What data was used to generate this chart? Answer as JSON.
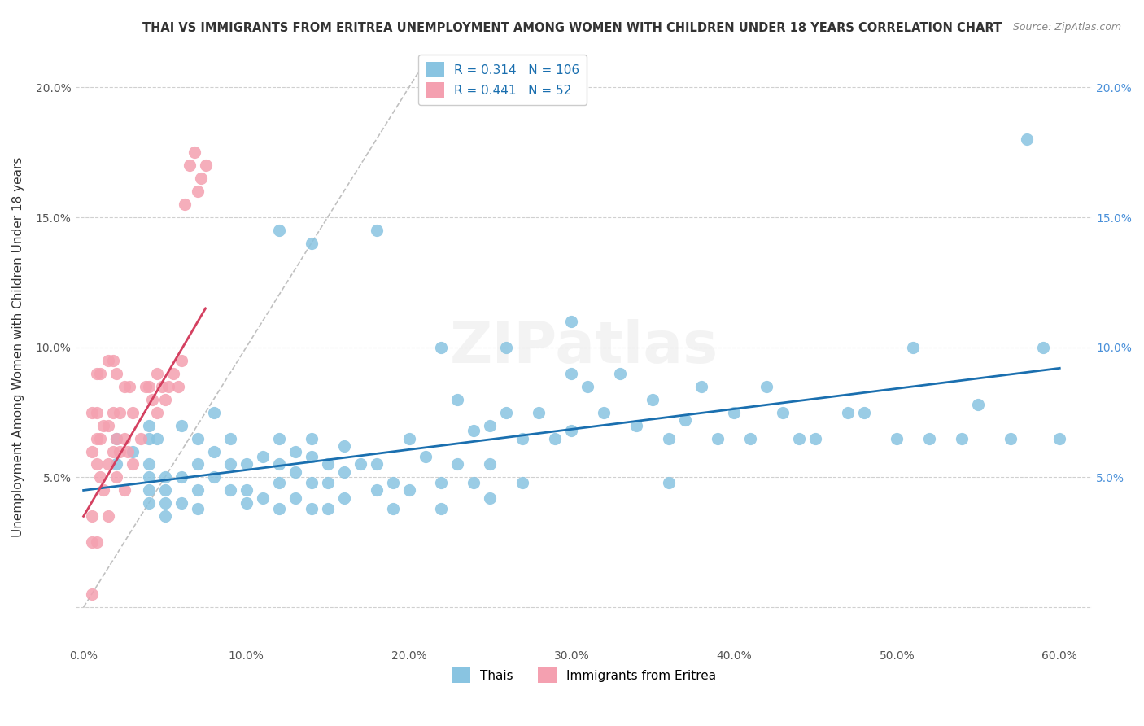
{
  "title": "THAI VS IMMIGRANTS FROM ERITREA UNEMPLOYMENT AMONG WOMEN WITH CHILDREN UNDER 18 YEARS CORRELATION CHART",
  "source": "Source: ZipAtlas.com",
  "xlabel_ticks": [
    0.0,
    0.1,
    0.2,
    0.3,
    0.4,
    0.5,
    0.6
  ],
  "xlabel_labels": [
    "0.0%",
    "10.0%",
    "20.0%",
    "30.0%",
    "40.0%",
    "50.0%",
    "60.0%"
  ],
  "ylabel_ticks": [
    0.0,
    0.05,
    0.1,
    0.15,
    0.2
  ],
  "ylabel_labels": [
    "",
    "5.0%",
    "10.0%",
    "15.0%",
    "20.0%"
  ],
  "ylabel_label": "Unemployment Among Women with Children Under 18 years",
  "xlim": [
    -0.005,
    0.62
  ],
  "ylim": [
    -0.015,
    0.215
  ],
  "thai_R": 0.314,
  "thai_N": 106,
  "eritrea_R": 0.441,
  "eritrea_N": 52,
  "thai_color": "#89c4e1",
  "eritrea_color": "#f4a0b0",
  "thai_line_color": "#1a6faf",
  "eritrea_line_color": "#d44060",
  "ref_line_color": "#c0c0c0",
  "watermark": "ZIPatlas",
  "legend_entries": [
    "Thais",
    "Immigrants from Eritrea"
  ],
  "thai_scatter_x": [
    0.02,
    0.02,
    0.03,
    0.04,
    0.04,
    0.04,
    0.04,
    0.04,
    0.04,
    0.045,
    0.05,
    0.05,
    0.05,
    0.05,
    0.06,
    0.06,
    0.06,
    0.07,
    0.07,
    0.07,
    0.07,
    0.08,
    0.08,
    0.08,
    0.09,
    0.09,
    0.09,
    0.1,
    0.1,
    0.1,
    0.11,
    0.11,
    0.12,
    0.12,
    0.12,
    0.12,
    0.13,
    0.13,
    0.13,
    0.14,
    0.14,
    0.14,
    0.14,
    0.15,
    0.15,
    0.15,
    0.16,
    0.16,
    0.16,
    0.17,
    0.18,
    0.18,
    0.19,
    0.19,
    0.2,
    0.2,
    0.21,
    0.22,
    0.22,
    0.23,
    0.23,
    0.24,
    0.24,
    0.25,
    0.25,
    0.25,
    0.26,
    0.27,
    0.27,
    0.28,
    0.29,
    0.3,
    0.3,
    0.31,
    0.32,
    0.33,
    0.34,
    0.35,
    0.36,
    0.36,
    0.37,
    0.38,
    0.39,
    0.4,
    0.41,
    0.42,
    0.43,
    0.44,
    0.45,
    0.47,
    0.48,
    0.5,
    0.51,
    0.52,
    0.54,
    0.55,
    0.57,
    0.58,
    0.59,
    0.6,
    0.12,
    0.14,
    0.18,
    0.22,
    0.26,
    0.3
  ],
  "thai_scatter_y": [
    0.065,
    0.055,
    0.06,
    0.07,
    0.065,
    0.055,
    0.05,
    0.045,
    0.04,
    0.065,
    0.05,
    0.045,
    0.04,
    0.035,
    0.07,
    0.05,
    0.04,
    0.065,
    0.055,
    0.045,
    0.038,
    0.075,
    0.06,
    0.05,
    0.065,
    0.055,
    0.045,
    0.055,
    0.045,
    0.04,
    0.058,
    0.042,
    0.065,
    0.055,
    0.048,
    0.038,
    0.06,
    0.052,
    0.042,
    0.065,
    0.058,
    0.048,
    0.038,
    0.055,
    0.048,
    0.038,
    0.062,
    0.052,
    0.042,
    0.055,
    0.055,
    0.045,
    0.048,
    0.038,
    0.065,
    0.045,
    0.058,
    0.048,
    0.038,
    0.08,
    0.055,
    0.068,
    0.048,
    0.07,
    0.055,
    0.042,
    0.075,
    0.065,
    0.048,
    0.075,
    0.065,
    0.09,
    0.068,
    0.085,
    0.075,
    0.09,
    0.07,
    0.08,
    0.065,
    0.048,
    0.072,
    0.085,
    0.065,
    0.075,
    0.065,
    0.085,
    0.075,
    0.065,
    0.065,
    0.075,
    0.075,
    0.065,
    0.1,
    0.065,
    0.065,
    0.078,
    0.065,
    0.18,
    0.1,
    0.065,
    0.145,
    0.14,
    0.145,
    0.1,
    0.1,
    0.11
  ],
  "eritrea_scatter_x": [
    0.005,
    0.005,
    0.005,
    0.005,
    0.005,
    0.008,
    0.008,
    0.008,
    0.008,
    0.008,
    0.01,
    0.01,
    0.01,
    0.012,
    0.012,
    0.015,
    0.015,
    0.015,
    0.015,
    0.018,
    0.018,
    0.018,
    0.02,
    0.02,
    0.02,
    0.022,
    0.022,
    0.025,
    0.025,
    0.025,
    0.027,
    0.028,
    0.03,
    0.03,
    0.035,
    0.038,
    0.04,
    0.042,
    0.045,
    0.045,
    0.048,
    0.05,
    0.052,
    0.055,
    0.058,
    0.06,
    0.062,
    0.065,
    0.068,
    0.07,
    0.072,
    0.075
  ],
  "eritrea_scatter_y": [
    0.005,
    0.025,
    0.035,
    0.06,
    0.075,
    0.025,
    0.055,
    0.065,
    0.075,
    0.09,
    0.05,
    0.065,
    0.09,
    0.045,
    0.07,
    0.035,
    0.055,
    0.07,
    0.095,
    0.06,
    0.075,
    0.095,
    0.05,
    0.065,
    0.09,
    0.06,
    0.075,
    0.045,
    0.065,
    0.085,
    0.06,
    0.085,
    0.055,
    0.075,
    0.065,
    0.085,
    0.085,
    0.08,
    0.075,
    0.09,
    0.085,
    0.08,
    0.085,
    0.09,
    0.085,
    0.095,
    0.155,
    0.17,
    0.175,
    0.16,
    0.165,
    0.17
  ],
  "thai_trend_x": [
    0.0,
    0.6
  ],
  "thai_trend_y": [
    0.045,
    0.092
  ],
  "eritrea_trend_x": [
    0.0,
    0.075
  ],
  "eritrea_trend_y": [
    0.035,
    0.115
  ],
  "ref_line_x": [
    0.0,
    0.21
  ],
  "ref_line_y": [
    0.0,
    0.21
  ]
}
